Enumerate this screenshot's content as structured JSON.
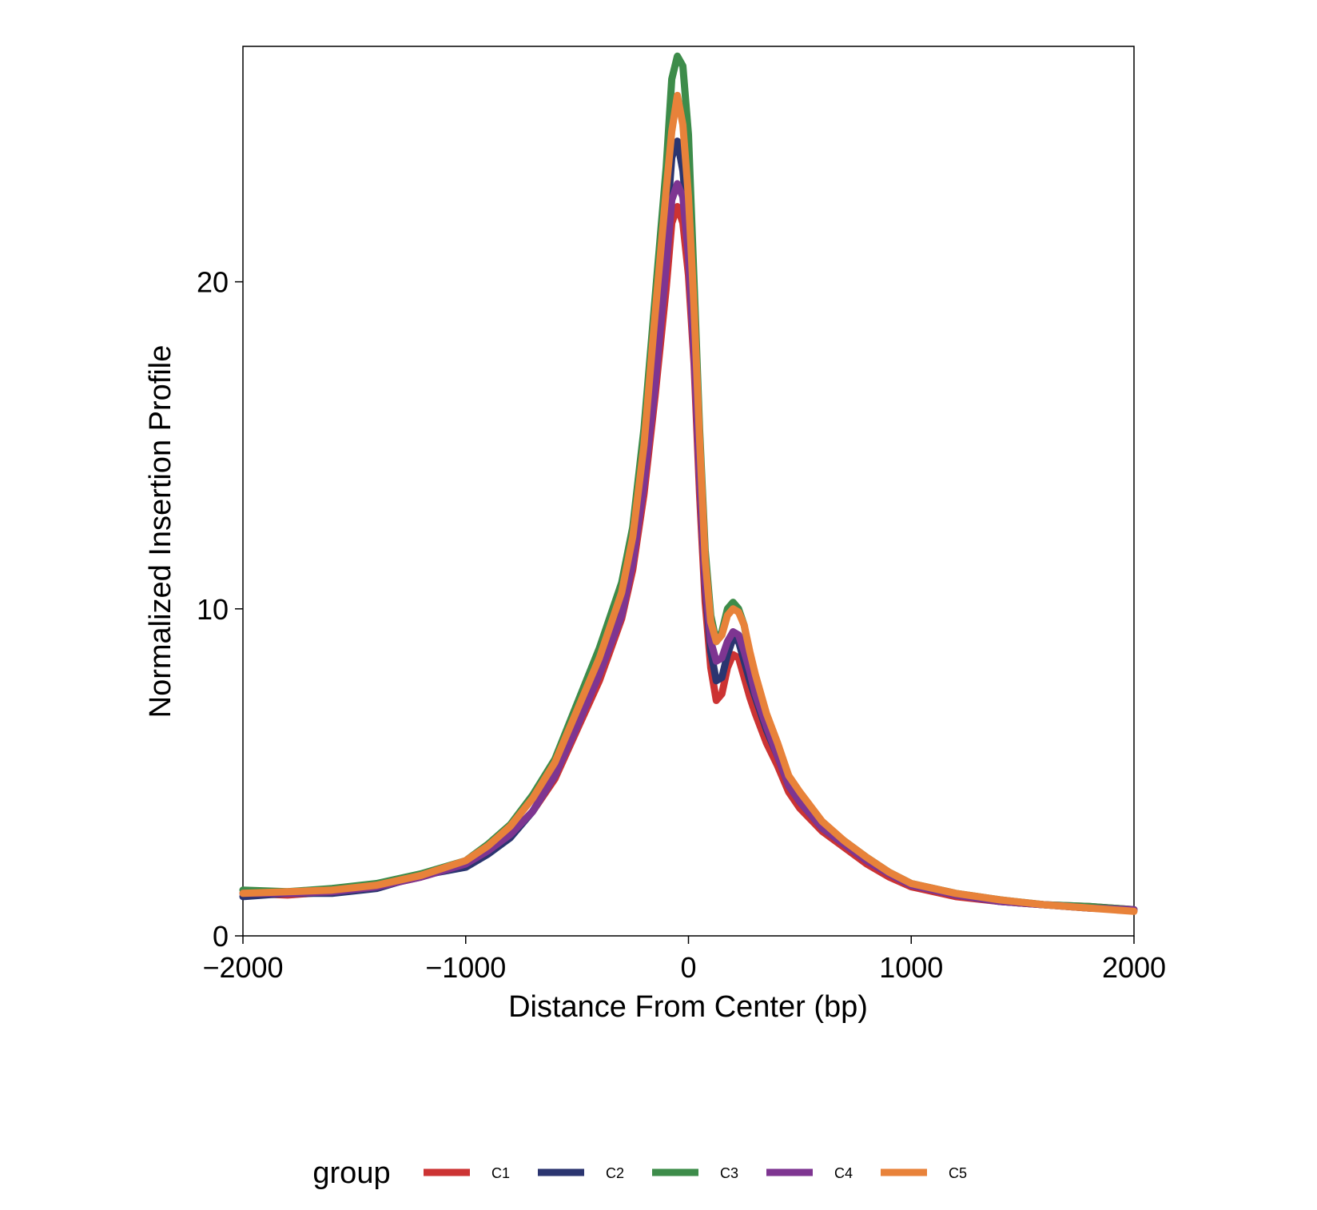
{
  "chart_data": {
    "type": "line",
    "title": "",
    "xlabel": "Distance From Center (bp)",
    "ylabel": "Normalized Insertion Profile",
    "xlim": [
      -2000,
      2000
    ],
    "ylim": [
      0,
      27.2
    ],
    "xticks": [
      -2000,
      -1000,
      0,
      1000,
      2000
    ],
    "xtick_labels": [
      "−2000",
      "−1000",
      "0",
      "1000",
      "2000"
    ],
    "yticks": [
      0,
      10,
      20
    ],
    "ytick_labels": [
      "0",
      "10",
      "20"
    ],
    "grid": false,
    "legend": {
      "title": "group",
      "position": "bottom"
    },
    "x": [
      -2000,
      -1800,
      -1600,
      -1400,
      -1200,
      -1000,
      -900,
      -800,
      -700,
      -600,
      -500,
      -400,
      -300,
      -250,
      -200,
      -150,
      -100,
      -75,
      -50,
      -25,
      0,
      25,
      50,
      75,
      100,
      125,
      150,
      175,
      200,
      225,
      250,
      275,
      300,
      350,
      400,
      450,
      500,
      600,
      700,
      800,
      900,
      1000,
      1200,
      1400,
      1600,
      1800,
      2000
    ],
    "series": [
      {
        "name": "C1",
        "color": "#cc3333",
        "values": [
          1.3,
          1.25,
          1.35,
          1.5,
          1.8,
          2.2,
          2.6,
          3.1,
          3.8,
          4.8,
          6.3,
          7.8,
          9.7,
          11.2,
          13.5,
          16.5,
          19.8,
          21.8,
          22.3,
          21.8,
          20.2,
          17.5,
          13.5,
          10.2,
          8.2,
          7.2,
          7.4,
          8.2,
          8.6,
          8.5,
          7.9,
          7.3,
          6.8,
          5.9,
          5.2,
          4.4,
          3.9,
          3.2,
          2.7,
          2.2,
          1.8,
          1.5,
          1.2,
          1.05,
          0.95,
          0.9,
          0.8
        ]
      },
      {
        "name": "C2",
        "color": "#2b3570",
        "values": [
          1.2,
          1.3,
          1.3,
          1.45,
          1.85,
          2.1,
          2.5,
          3.0,
          3.8,
          4.9,
          6.5,
          8.0,
          10.0,
          11.5,
          14.0,
          17.5,
          21.5,
          23.8,
          24.3,
          23.4,
          21.5,
          18.0,
          14.0,
          10.7,
          8.7,
          7.8,
          7.9,
          8.6,
          9.1,
          9.0,
          8.4,
          7.8,
          7.3,
          6.3,
          5.5,
          4.6,
          4.1,
          3.3,
          2.8,
          2.3,
          1.9,
          1.55,
          1.25,
          1.05,
          0.95,
          0.85,
          0.8
        ]
      },
      {
        "name": "C3",
        "color": "#3d8c4a",
        "values": [
          1.4,
          1.35,
          1.45,
          1.6,
          1.9,
          2.3,
          2.8,
          3.4,
          4.3,
          5.4,
          7.1,
          8.8,
          10.8,
          12.5,
          15.5,
          19.5,
          23.5,
          26.2,
          26.9,
          26.6,
          24.5,
          20.0,
          15.5,
          11.8,
          9.8,
          9.0,
          9.3,
          10.0,
          10.2,
          10.0,
          9.5,
          8.6,
          7.9,
          6.7,
          5.8,
          4.8,
          4.3,
          3.4,
          2.9,
          2.4,
          1.95,
          1.6,
          1.3,
          1.1,
          0.95,
          0.9,
          0.8
        ]
      },
      {
        "name": "C4",
        "color": "#7e3591",
        "values": [
          1.3,
          1.3,
          1.35,
          1.5,
          1.8,
          2.2,
          2.6,
          3.1,
          3.8,
          4.9,
          6.4,
          8.0,
          9.8,
          11.4,
          13.8,
          16.8,
          20.5,
          22.5,
          23.0,
          22.6,
          20.8,
          17.8,
          14.0,
          10.8,
          9.0,
          8.4,
          8.5,
          9.0,
          9.3,
          9.2,
          8.7,
          8.1,
          7.4,
          6.4,
          5.5,
          4.6,
          4.1,
          3.3,
          2.8,
          2.3,
          1.9,
          1.55,
          1.25,
          1.05,
          0.95,
          0.85,
          0.8
        ]
      },
      {
        "name": "C5",
        "color": "#e8823a",
        "values": [
          1.3,
          1.35,
          1.4,
          1.55,
          1.85,
          2.3,
          2.75,
          3.35,
          4.2,
          5.3,
          6.9,
          8.5,
          10.5,
          12.2,
          15.0,
          19.0,
          22.8,
          24.6,
          25.7,
          24.8,
          22.6,
          19.2,
          15.2,
          11.5,
          9.6,
          9.0,
          9.2,
          9.8,
          10.0,
          9.9,
          9.5,
          8.7,
          8.0,
          6.8,
          5.9,
          4.9,
          4.4,
          3.5,
          2.9,
          2.4,
          1.95,
          1.6,
          1.3,
          1.1,
          0.95,
          0.85,
          0.75
        ]
      }
    ]
  }
}
